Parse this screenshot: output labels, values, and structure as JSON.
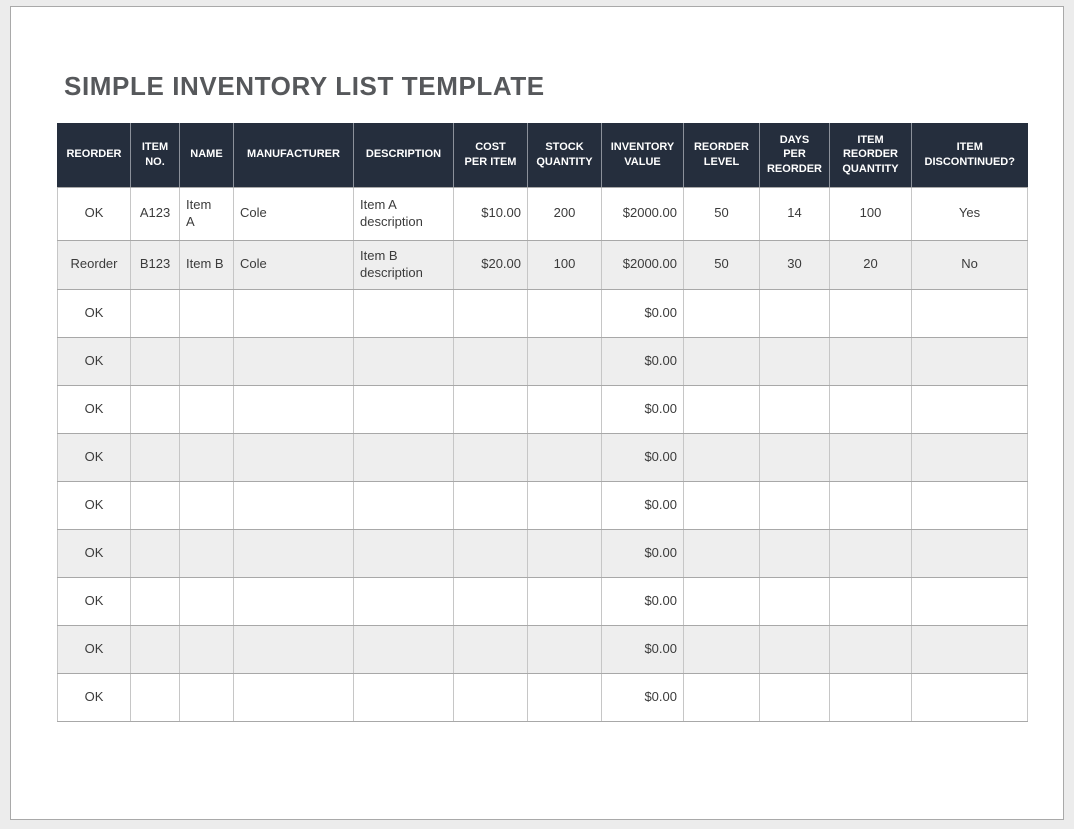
{
  "page": {
    "title": "SIMPLE INVENTORY LIST TEMPLATE"
  },
  "colors": {
    "header_bg": "#252e3d",
    "header_text": "#ffffff",
    "row_alt_bg": "#eeeeee",
    "row_bg": "#ffffff",
    "grid_border_vertical": "#c6c6c6",
    "grid_border_horizontal": "#a8a8a8",
    "title_text": "#56585b",
    "page_bg": "#ffffff",
    "outer_bg": "#ececec"
  },
  "table": {
    "headers": [
      "REORDER",
      "ITEM\nNO.",
      "NAME",
      "MANUFACTURER",
      "DESCRIPTION",
      "COST\nPER ITEM",
      "STOCK\nQUANTITY",
      "INVENTORY\nVALUE",
      "REORDER\nLEVEL",
      "DAYS\nPER\nREORDER",
      "ITEM\nREORDER\nQUANTITY",
      "ITEM\nDISCONTINUED?"
    ],
    "rows": [
      [
        "OK",
        "A123",
        "Item\nA",
        "Cole",
        "Item A\ndescription",
        "$10.00",
        "200",
        "$2000.00",
        "50",
        "14",
        "100",
        "Yes"
      ],
      [
        "Reorder",
        "B123",
        "Item B",
        "Cole",
        "Item B\ndescription",
        "$20.00",
        "100",
        "$2000.00",
        "50",
        "30",
        "20",
        "No"
      ],
      [
        "OK",
        "",
        "",
        "",
        "",
        "",
        "",
        "$0.00",
        "",
        "",
        "",
        ""
      ],
      [
        "OK",
        "",
        "",
        "",
        "",
        "",
        "",
        "$0.00",
        "",
        "",
        "",
        ""
      ],
      [
        "OK",
        "",
        "",
        "",
        "",
        "",
        "",
        "$0.00",
        "",
        "",
        "",
        ""
      ],
      [
        "OK",
        "",
        "",
        "",
        "",
        "",
        "",
        "$0.00",
        "",
        "",
        "",
        ""
      ],
      [
        "OK",
        "",
        "",
        "",
        "",
        "",
        "",
        "$0.00",
        "",
        "",
        "",
        ""
      ],
      [
        "OK",
        "",
        "",
        "",
        "",
        "",
        "",
        "$0.00",
        "",
        "",
        "",
        ""
      ],
      [
        "OK",
        "",
        "",
        "",
        "",
        "",
        "",
        "$0.00",
        "",
        "",
        "",
        ""
      ],
      [
        "OK",
        "",
        "",
        "",
        "",
        "",
        "",
        "$0.00",
        "",
        "",
        "",
        ""
      ],
      [
        "OK",
        "",
        "",
        "",
        "",
        "",
        "",
        "$0.00",
        "",
        "",
        "",
        ""
      ]
    ]
  }
}
